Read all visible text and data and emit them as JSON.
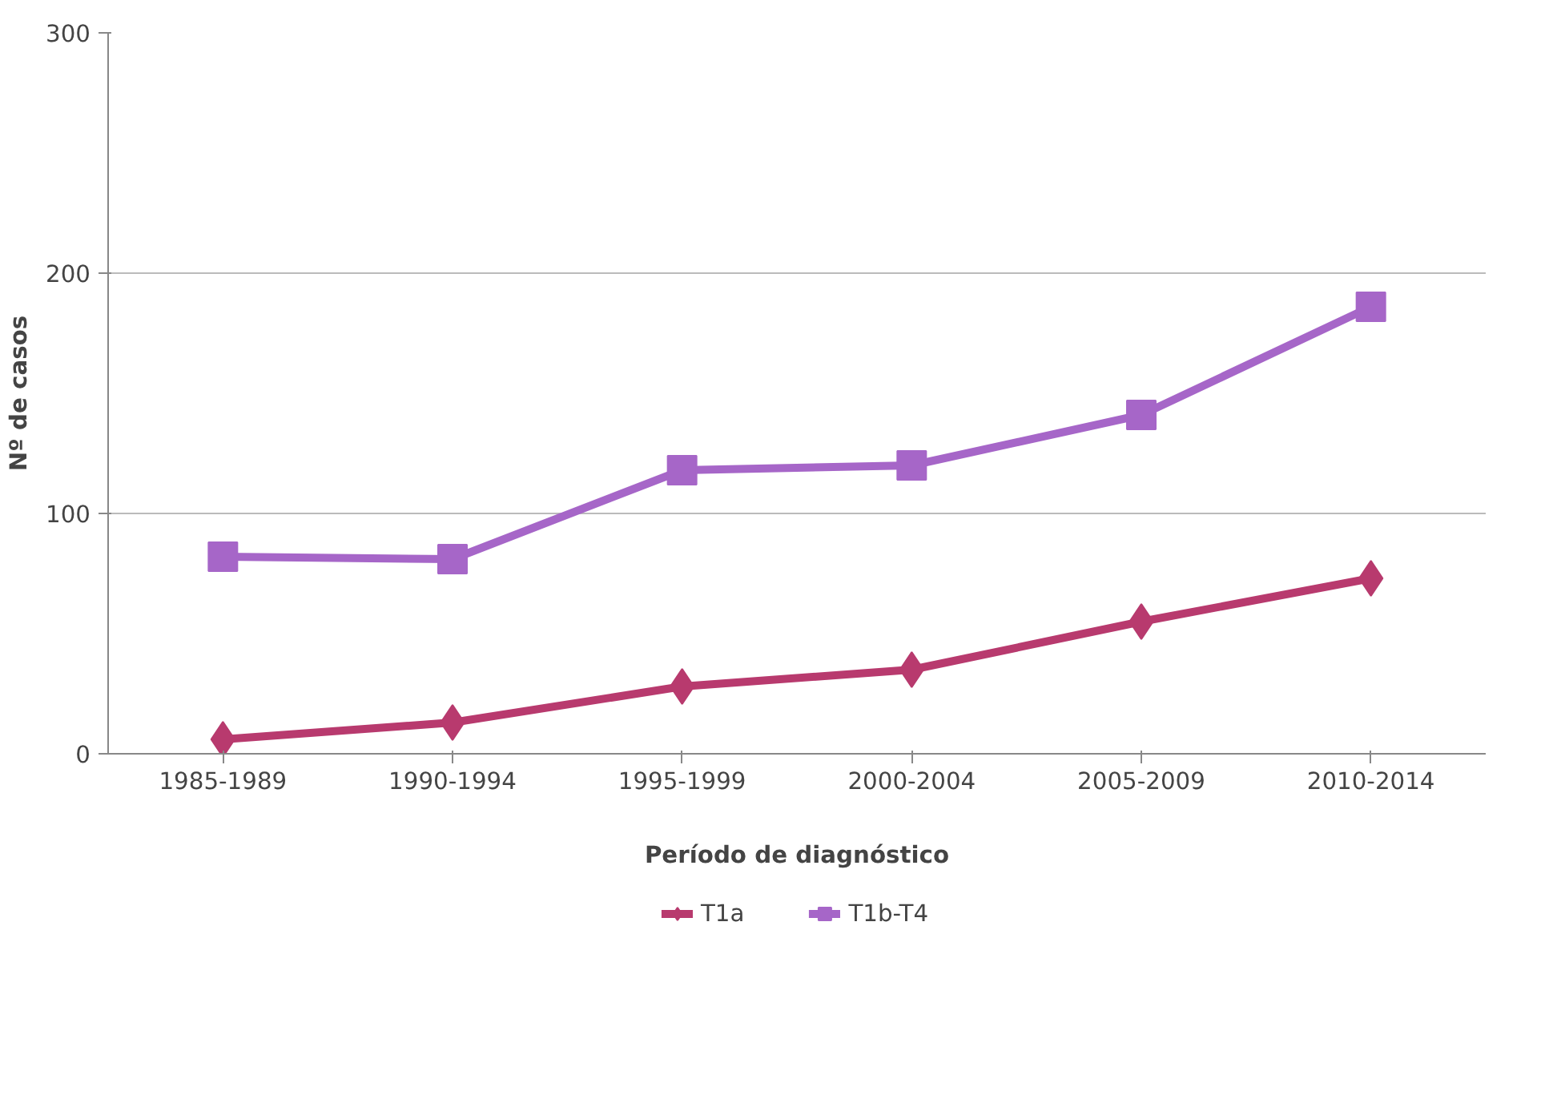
{
  "chart_data": {
    "type": "line",
    "xlabel": "Período de diagnóstico",
    "ylabel": "Nº de casos",
    "categories": [
      "1985-1989",
      "1990-1994",
      "1995-1999",
      "2000-2004",
      "2005-2009",
      "2010-2014"
    ],
    "series": [
      {
        "name": "T1a",
        "color": "#b83a6e",
        "marker": "diamond",
        "values": [
          6,
          13,
          28,
          35,
          55,
          73
        ]
      },
      {
        "name": "T1b-T4",
        "color": "#a666c8",
        "marker": "square",
        "values": [
          82,
          81,
          118,
          120,
          141,
          186
        ]
      }
    ],
    "ylim": [
      0,
      300
    ],
    "yticks": [
      0,
      100,
      200,
      300
    ],
    "grid": "y",
    "legend": "bottom",
    "line_style": "solid"
  }
}
